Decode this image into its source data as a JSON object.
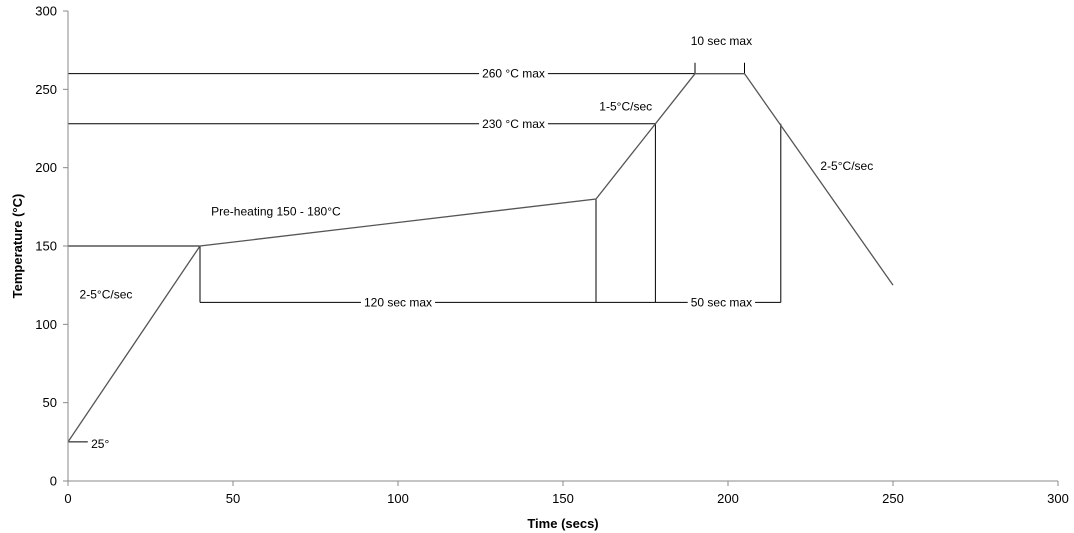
{
  "chart_data": {
    "type": "line",
    "title": "",
    "xlabel": "Time (secs)",
    "ylabel": "Temperature (°C)",
    "xlim": [
      0,
      300
    ],
    "ylim": [
      0,
      300
    ],
    "xticks": [
      0,
      50,
      100,
      150,
      200,
      250,
      300
    ],
    "yticks": [
      0,
      50,
      100,
      150,
      200,
      250,
      300
    ],
    "grid": false,
    "legend": "none",
    "series": [
      {
        "x": [
          0,
          40,
          160,
          190,
          205,
          250
        ],
        "y": [
          25,
          150,
          180,
          260,
          260,
          125
        ]
      }
    ],
    "annotations": [
      {
        "key": "ramp_up",
        "text": "2-5°C/sec",
        "x": 3.5,
        "y": 119
      },
      {
        "key": "preheat",
        "text": "Pre-heating 150 - 180°C",
        "x": 63,
        "y": 172
      },
      {
        "key": "ramp_peak",
        "text": "1-5°C/sec",
        "x": 161,
        "y": 239
      },
      {
        "key": "ramp_down",
        "text": "2-5°C/sec",
        "x": 228,
        "y": 201
      },
      {
        "key": "ambient",
        "text": "25°",
        "x": 7,
        "y": 23.5
      },
      {
        "key": "max_260",
        "text": "260 °C max",
        "x": 135,
        "y": 260
      },
      {
        "key": "max_230",
        "text": "230 °C max",
        "x": 135,
        "y": 228
      },
      {
        "key": "time_120",
        "text": "120 sec max",
        "x": 100,
        "y": 114
      },
      {
        "key": "time_50",
        "text": "50 sec max",
        "x": 198,
        "y": 114
      },
      {
        "key": "time_10",
        "text": "10 sec max",
        "x": 198,
        "y": 281
      }
    ],
    "reference_lines": [
      {
        "x1": 0,
        "y1": 260,
        "x2": 190,
        "y2": 260
      },
      {
        "x1": 0,
        "y1": 228,
        "x2": 178,
        "y2": 228
      },
      {
        "x1": 0,
        "y1": 150,
        "x2": 40,
        "y2": 150
      },
      {
        "x1": 0,
        "y1": 25,
        "x2": 6,
        "y2": 25
      },
      {
        "x1": 40,
        "y1": 150,
        "x2": 40,
        "y2": 114
      },
      {
        "x1": 40,
        "y1": 114,
        "x2": 216,
        "y2": 114
      },
      {
        "x1": 160,
        "y1": 180,
        "x2": 160,
        "y2": 114
      },
      {
        "x1": 178,
        "y1": 228,
        "x2": 178,
        "y2": 114
      },
      {
        "x1": 216,
        "y1": 228,
        "x2": 216,
        "y2": 114
      },
      {
        "x1": 190,
        "y1": 260,
        "x2": 190,
        "y2": 267
      },
      {
        "x1": 205,
        "y1": 260,
        "x2": 205,
        "y2": 267
      }
    ]
  }
}
